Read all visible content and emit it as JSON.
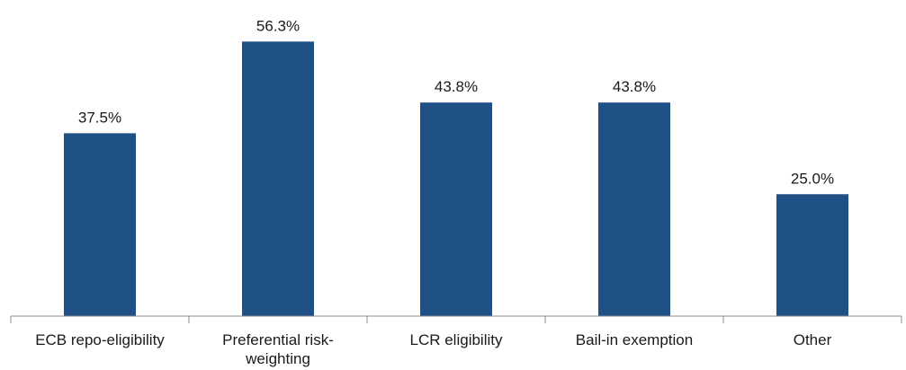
{
  "chart_data": {
    "type": "bar",
    "categories": [
      [
        "ECB repo-eligibility"
      ],
      [
        "Preferential risk-",
        "weighting"
      ],
      [
        "LCR eligibility"
      ],
      [
        "Bail-in exemption"
      ],
      [
        "Other"
      ]
    ],
    "values": [
      37.5,
      56.3,
      43.8,
      43.8,
      25.0
    ],
    "data_labels": [
      "37.5%",
      "56.3%",
      "43.8%",
      "43.8%",
      "25.0%"
    ],
    "title": "",
    "xlabel": "",
    "ylabel": "",
    "ylim": [
      0,
      60
    ],
    "grid": false,
    "legend": "none",
    "bar_color": "#1f5086",
    "axis_color": "#8c8c8c"
  }
}
